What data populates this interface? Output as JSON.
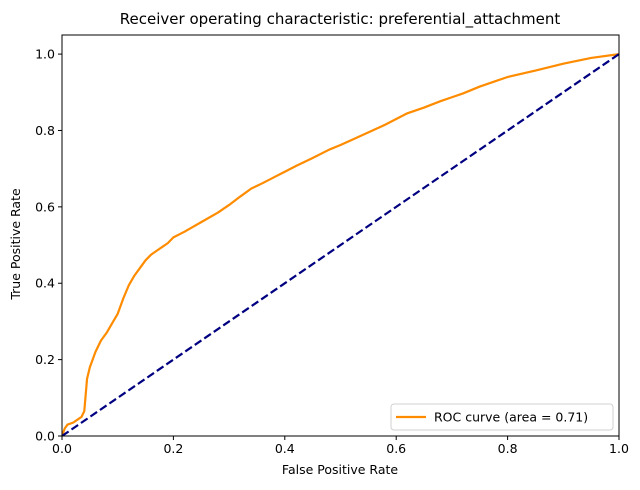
{
  "chart_data": {
    "type": "line",
    "title": "Receiver operating characteristic: preferential_attachment",
    "xlabel": "False Positive Rate",
    "ylabel": "True Positive Rate",
    "xlim": [
      0.0,
      1.0
    ],
    "ylim": [
      0.0,
      1.05
    ],
    "xticks": [
      "0.0",
      "0.2",
      "0.4",
      "0.6",
      "0.8",
      "1.0"
    ],
    "yticks": [
      "0.0",
      "0.2",
      "0.4",
      "0.6",
      "0.8",
      "1.0"
    ],
    "grid": false,
    "legend_position": "lower-right",
    "series": [
      {
        "name": "ROC curve (area = 0.71)",
        "color": "#ff8c00",
        "style": "solid",
        "x": [
          0.0,
          0.005,
          0.01,
          0.02,
          0.03,
          0.035,
          0.04,
          0.045,
          0.05,
          0.055,
          0.06,
          0.065,
          0.07,
          0.08,
          0.09,
          0.1,
          0.11,
          0.12,
          0.13,
          0.14,
          0.15,
          0.16,
          0.17,
          0.18,
          0.19,
          0.2,
          0.22,
          0.25,
          0.28,
          0.3,
          0.32,
          0.34,
          0.36,
          0.38,
          0.4,
          0.42,
          0.45,
          0.48,
          0.5,
          0.52,
          0.55,
          0.58,
          0.6,
          0.62,
          0.65,
          0.68,
          0.7,
          0.72,
          0.75,
          0.78,
          0.8,
          0.85,
          0.9,
          0.95,
          1.0
        ],
        "y": [
          0.0,
          0.02,
          0.03,
          0.035,
          0.045,
          0.05,
          0.065,
          0.15,
          0.18,
          0.2,
          0.22,
          0.235,
          0.25,
          0.27,
          0.295,
          0.32,
          0.36,
          0.395,
          0.42,
          0.44,
          0.46,
          0.475,
          0.485,
          0.495,
          0.505,
          0.52,
          0.535,
          0.56,
          0.585,
          0.605,
          0.627,
          0.648,
          0.662,
          0.677,
          0.692,
          0.707,
          0.728,
          0.75,
          0.762,
          0.775,
          0.795,
          0.815,
          0.83,
          0.845,
          0.86,
          0.877,
          0.887,
          0.897,
          0.915,
          0.93,
          0.94,
          0.957,
          0.975,
          0.99,
          1.0
        ]
      },
      {
        "name": "",
        "color": "#000080",
        "style": "dashed",
        "x": [
          0.0,
          1.0
        ],
        "y": [
          0.0,
          1.0
        ]
      }
    ]
  }
}
